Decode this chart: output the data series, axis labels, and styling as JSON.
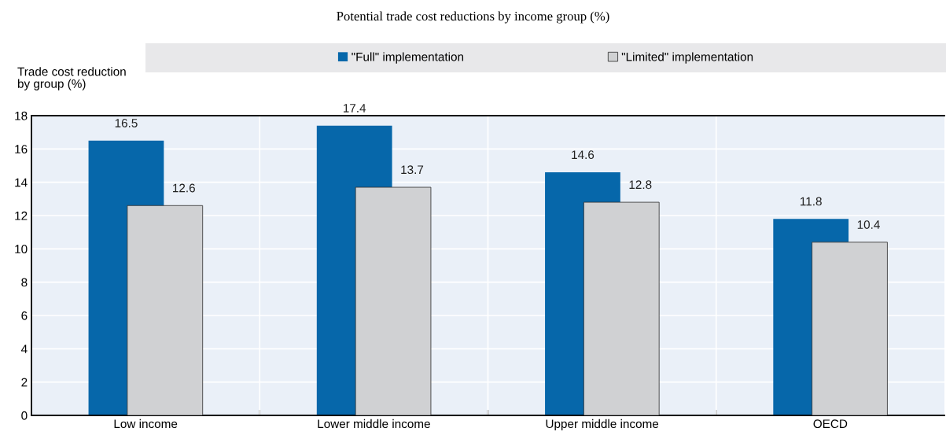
{
  "chart_data": {
    "type": "bar",
    "title": "Potential trade cost reductions by income group (%)",
    "ylabel": "Trade cost reduction\nby group (%)",
    "categories": [
      "Low income",
      "Lower middle income",
      "Upper middle income",
      "OECD"
    ],
    "series": [
      {
        "name": "\"Full\" implementation",
        "color": "#0667aa",
        "values": [
          16.5,
          17.4,
          14.6,
          11.8
        ]
      },
      {
        "name": "\"Limited\" implementation",
        "color": "#d0d1d3",
        "values": [
          12.6,
          13.7,
          12.8,
          10.4
        ]
      }
    ],
    "ylim": [
      0,
      18
    ],
    "yticks": [
      0,
      2,
      4,
      6,
      8,
      10,
      12,
      14,
      16,
      18
    ],
    "grid": true,
    "legend": "top",
    "data_labels": true
  }
}
